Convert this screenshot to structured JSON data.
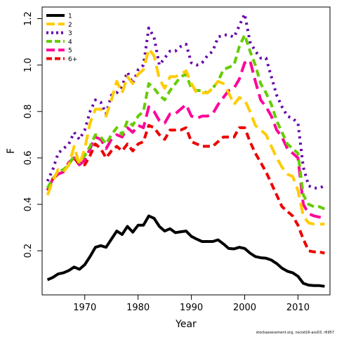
{
  "credit": "stockassessment.org, nscod16-ass03, r6957",
  "chart_data": {
    "type": "line",
    "xlabel": "Year",
    "ylabel": "F",
    "xlim": [
      1962,
      2016
    ],
    "ylim": [
      0.01,
      1.25
    ],
    "xticks": [
      1970,
      1980,
      1990,
      2000,
      2010
    ],
    "yticks": [
      0.2,
      0.4,
      0.6,
      0.8,
      1.0,
      1.2
    ],
    "ytick_labels": [
      "0.2",
      "0.4",
      "0.6",
      "0.8",
      "1.0",
      "1.2"
    ],
    "legend_position": "top-left",
    "x": [
      1963,
      1964,
      1965,
      1966,
      1967,
      1968,
      1969,
      1970,
      1971,
      1972,
      1973,
      1974,
      1975,
      1976,
      1977,
      1978,
      1979,
      1980,
      1981,
      1982,
      1983,
      1984,
      1985,
      1986,
      1987,
      1988,
      1989,
      1990,
      1991,
      1992,
      1993,
      1994,
      1995,
      1996,
      1997,
      1998,
      1999,
      2000,
      2001,
      2002,
      2003,
      2004,
      2005,
      2006,
      2007,
      2008,
      2009,
      2010,
      2011,
      2012,
      2013,
      2014,
      2015
    ],
    "series": [
      {
        "name": "1",
        "color": "#000000",
        "dash": "solid",
        "values": [
          0.075,
          0.085,
          0.1,
          0.105,
          0.115,
          0.13,
          0.12,
          0.14,
          0.175,
          0.215,
          0.222,
          0.215,
          0.25,
          0.285,
          0.27,
          0.305,
          0.28,
          0.31,
          0.31,
          0.35,
          0.34,
          0.305,
          0.285,
          0.295,
          0.278,
          0.282,
          0.285,
          0.262,
          0.25,
          0.24,
          0.24,
          0.24,
          0.247,
          0.23,
          0.21,
          0.208,
          0.215,
          0.21,
          0.19,
          0.175,
          0.17,
          0.168,
          0.16,
          0.145,
          0.125,
          0.112,
          0.105,
          0.09,
          0.06,
          0.052,
          0.05,
          0.05,
          0.047
        ]
      },
      {
        "name": "2",
        "color": "#ffcc00",
        "dash": "long",
        "values": [
          0.44,
          0.5,
          0.55,
          0.54,
          0.57,
          0.65,
          0.57,
          0.64,
          0.75,
          0.81,
          0.81,
          0.78,
          0.85,
          0.93,
          0.88,
          0.95,
          0.92,
          0.96,
          0.98,
          1.07,
          1.04,
          0.94,
          0.9,
          0.95,
          0.95,
          0.96,
          0.975,
          0.92,
          0.88,
          0.88,
          0.88,
          0.9,
          0.93,
          0.92,
          0.88,
          0.83,
          0.86,
          0.85,
          0.8,
          0.74,
          0.72,
          0.7,
          0.65,
          0.6,
          0.56,
          0.53,
          0.52,
          0.46,
          0.35,
          0.32,
          0.315,
          0.315,
          0.315
        ]
      },
      {
        "name": "3",
        "color": "#6600aa",
        "dash": "dot",
        "values": [
          0.5,
          0.55,
          0.62,
          0.64,
          0.66,
          0.71,
          0.68,
          0.72,
          0.8,
          0.85,
          0.84,
          0.79,
          0.87,
          0.88,
          0.91,
          0.97,
          0.92,
          0.98,
          1.0,
          1.16,
          1.12,
          1.0,
          1.03,
          1.06,
          1.06,
          1.08,
          1.09,
          1.01,
          1.0,
          1.01,
          1.04,
          1.06,
          1.12,
          1.13,
          1.13,
          1.12,
          1.17,
          1.22,
          1.1,
          1.06,
          1.03,
          1.03,
          0.95,
          0.87,
          0.82,
          0.78,
          0.77,
          0.75,
          0.56,
          0.48,
          0.47,
          0.47,
          0.48
        ]
      },
      {
        "name": "4",
        "color": "#66cc00",
        "dash": "dash",
        "values": [
          0.47,
          0.51,
          0.54,
          0.55,
          0.57,
          0.61,
          0.58,
          0.61,
          0.65,
          0.7,
          0.69,
          0.66,
          0.7,
          0.73,
          0.7,
          0.76,
          0.74,
          0.78,
          0.8,
          0.92,
          0.9,
          0.87,
          0.85,
          0.89,
          0.92,
          0.95,
          0.96,
          0.9,
          0.89,
          0.89,
          0.88,
          0.9,
          0.93,
          0.98,
          0.99,
          1.0,
          1.08,
          1.13,
          1.06,
          1.0,
          0.92,
          0.88,
          0.83,
          0.76,
          0.71,
          0.66,
          0.64,
          0.62,
          0.44,
          0.4,
          0.39,
          0.39,
          0.38
        ]
      },
      {
        "name": "5",
        "color": "#ff0099",
        "dash": "long",
        "values": [
          0.46,
          0.51,
          0.53,
          0.54,
          0.58,
          0.6,
          0.57,
          0.59,
          0.64,
          0.69,
          0.68,
          0.64,
          0.68,
          0.7,
          0.69,
          0.73,
          0.71,
          0.74,
          0.73,
          0.82,
          0.8,
          0.76,
          0.75,
          0.79,
          0.79,
          0.81,
          0.83,
          0.78,
          0.77,
          0.78,
          0.78,
          0.79,
          0.83,
          0.86,
          0.89,
          0.9,
          0.94,
          1.01,
          1.02,
          0.93,
          0.85,
          0.82,
          0.78,
          0.72,
          0.69,
          0.64,
          0.62,
          0.6,
          0.4,
          0.36,
          0.35,
          0.345,
          0.34
        ]
      },
      {
        "name": "6+",
        "color": "#ee0000",
        "dash": "dash",
        "values": [
          0.46,
          0.51,
          0.53,
          0.54,
          0.58,
          0.6,
          0.57,
          0.57,
          0.61,
          0.66,
          0.64,
          0.6,
          0.63,
          0.65,
          0.63,
          0.66,
          0.63,
          0.66,
          0.67,
          0.74,
          0.73,
          0.7,
          0.68,
          0.72,
          0.72,
          0.72,
          0.73,
          0.67,
          0.66,
          0.65,
          0.65,
          0.65,
          0.67,
          0.69,
          0.69,
          0.69,
          0.73,
          0.73,
          0.67,
          0.62,
          0.58,
          0.54,
          0.49,
          0.44,
          0.39,
          0.37,
          0.35,
          0.31,
          0.25,
          0.2,
          0.195,
          0.195,
          0.19
        ]
      }
    ]
  }
}
